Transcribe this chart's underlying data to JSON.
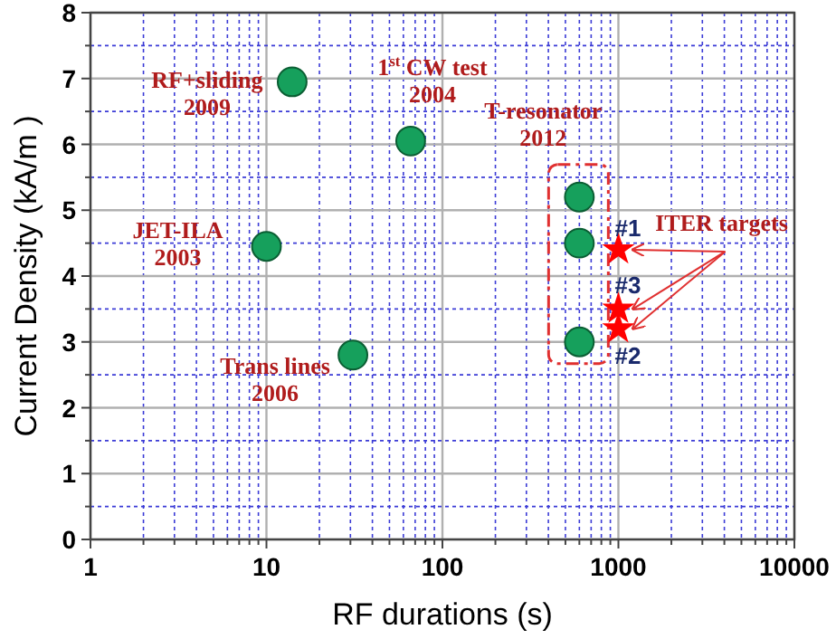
{
  "chart_data": {
    "type": "scatter",
    "xlabel": "RF durations (s)",
    "ylabel": "Current Density (kA/m )",
    "log": "x",
    "grid": true,
    "marker": "circle",
    "xlim": [
      1,
      10000
    ],
    "ylim": [
      0,
      8
    ],
    "xticks": [
      1,
      {
        "value": 2,
        "label": null
      },
      {
        "value": 3,
        "label": null
      },
      {
        "value": 4,
        "label": null
      },
      {
        "value": 5,
        "label": null
      },
      {
        "value": 6,
        "label": null
      },
      {
        "value": 7,
        "label": null
      },
      {
        "value": 8,
        "label": null
      },
      {
        "value": 9,
        "label": null
      },
      10,
      {
        "value": 20,
        "label": null
      },
      {
        "value": 30,
        "label": null
      },
      {
        "value": 40,
        "label": null
      },
      {
        "value": 50,
        "label": null
      },
      {
        "value": 60,
        "label": null
      },
      {
        "value": 70,
        "label": null
      },
      {
        "value": 80,
        "label": null
      },
      {
        "value": 90,
        "label": null
      },
      100,
      {
        "value": 200,
        "label": null
      },
      {
        "value": 300,
        "label": null
      },
      {
        "value": 400,
        "label": null
      },
      {
        "value": 500,
        "label": null
      },
      {
        "value": 600,
        "label": null
      },
      {
        "value": 700,
        "label": null
      },
      {
        "value": 800,
        "label": null
      },
      {
        "value": 900,
        "label": null
      },
      1000,
      {
        "value": 2000,
        "label": null
      },
      {
        "value": 3000,
        "label": null
      },
      {
        "value": 4000,
        "label": null
      },
      {
        "value": 5000,
        "label": null
      },
      {
        "value": 6000,
        "label": null
      },
      {
        "value": 7000,
        "label": null
      },
      {
        "value": 8000,
        "label": null
      },
      {
        "value": 9000,
        "label": null
      },
      10000
    ],
    "yticks": [
      0,
      {
        "value": 0.5,
        "label": null
      },
      1,
      {
        "value": 1.5,
        "label": null
      },
      2,
      {
        "value": 2.5,
        "label": null
      },
      3,
      {
        "value": 3.5,
        "label": null
      },
      4,
      {
        "value": 4.5,
        "label": null
      },
      5,
      {
        "value": 5.5,
        "label": null
      },
      6,
      {
        "value": 6.5,
        "label": null
      },
      7,
      {
        "value": 7.5,
        "label": null
      },
      8
    ],
    "series": [
      {
        "color": "#16a05c",
        "x": [
          14,
          66,
          10,
          31
        ],
        "values": [
          6.95,
          6.05,
          4.45,
          2.8
        ]
      },
      {
        "color": "#16a05c",
        "x": [
          600,
          600,
          600
        ],
        "values": [
          5.2,
          4.5,
          3.0
        ]
      },
      {
        "marker": "star",
        "color": "#ff0000",
        "x": [
          1000,
          1000,
          1000
        ],
        "values": [
          4.4,
          3.5,
          3.2
        ]
      }
    ],
    "annotations": [
      {
        "text": "RF+sliding\n2009",
        "x": 14,
        "y": 6.95
      },
      {
        "text": "1$^{st}$ CW test\n2004",
        "x": 66,
        "y": 6.05
      },
      {
        "text": "JET-ILA\n2003",
        "x": 10,
        "y": 4.45
      },
      {
        "text": "Trans lines\n2006",
        "x": 31,
        "y": 2.8
      },
      {
        "text": "T-resonator\n2012",
        "x": 600,
        "y": 5.2
      },
      {
        "text": "#1",
        "x": 1000,
        "y": 4.4
      },
      {
        "text": "#3",
        "x": 1000,
        "y": 3.5
      },
      {
        "text": "#2",
        "x": 1000,
        "y": 3.2
      },
      {
        "text": "ITER targets",
        "x": 1000,
        "y": 4.4
      }
    ]
  }
}
